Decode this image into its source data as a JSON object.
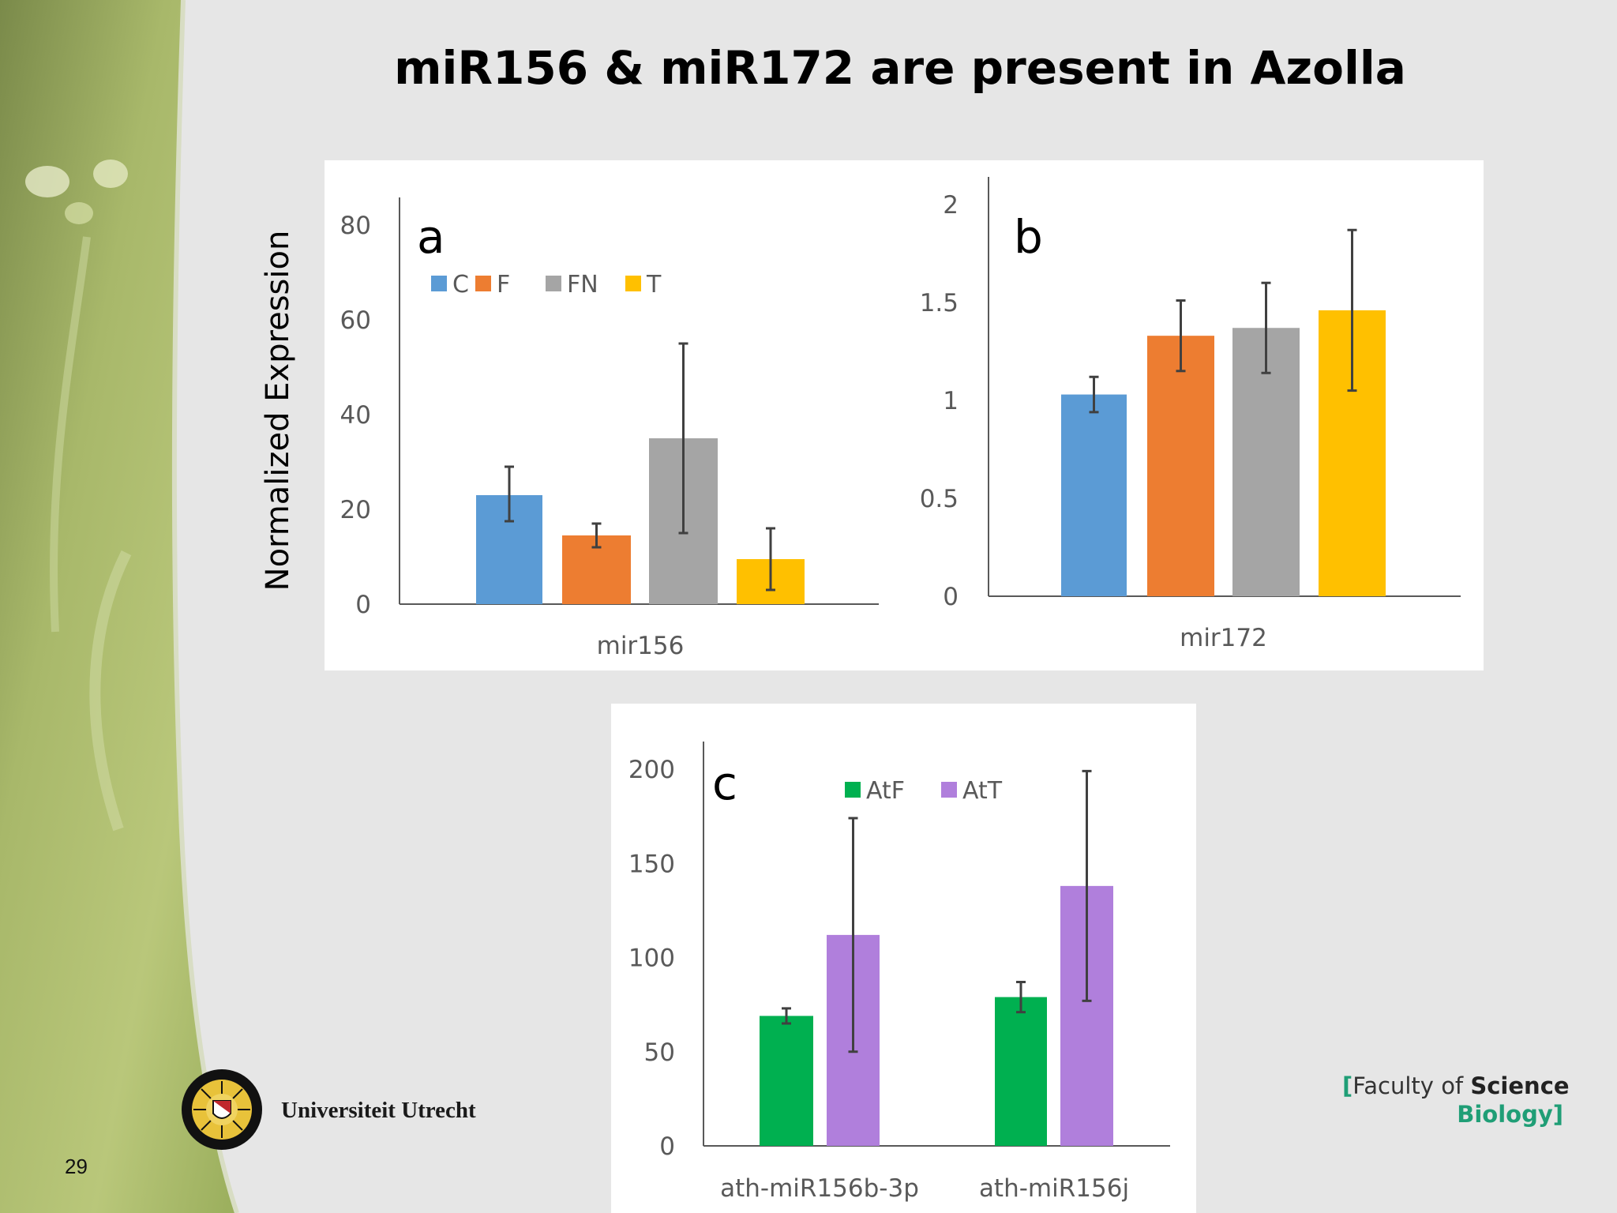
{
  "slide": {
    "title": "miR156 & miR172 are present in Azolla",
    "y_axis_label": "Normalized Expression",
    "page_number": "29",
    "university": "Universiteit Utrecht",
    "faculty": {
      "open_bracket": "[",
      "prefix": "Faculty of ",
      "emphasis": "Science",
      "dept": "Biology",
      "close_bracket": "]"
    }
  },
  "colors": {
    "C": "#5b9bd5",
    "F": "#ed7d31",
    "FN": "#a5a5a5",
    "T": "#ffc000",
    "AtF": "#00b050",
    "AtT": "#b07fdc",
    "faculty_green": "#1f9e76"
  },
  "chart_data": [
    {
      "type": "bar",
      "panel_label": "a",
      "categories": [
        "mir156"
      ],
      "series": [
        {
          "name": "C",
          "values": [
            23
          ],
          "error": [
            [
              17.5,
              29
            ]
          ]
        },
        {
          "name": "F",
          "values": [
            14.5
          ],
          "error": [
            [
              12,
              17
            ]
          ]
        },
        {
          "name": "FN",
          "values": [
            35
          ],
          "error": [
            [
              15,
              55
            ]
          ]
        },
        {
          "name": "T",
          "values": [
            9.5
          ],
          "error": [
            [
              3,
              16
            ]
          ]
        }
      ],
      "ylim": [
        0,
        80
      ],
      "yticks": [
        "0",
        "20",
        "40",
        "60",
        "80"
      ],
      "legend": "top-left",
      "grid": false
    },
    {
      "type": "bar",
      "panel_label": "b",
      "categories": [
        "mir172"
      ],
      "series": [
        {
          "name": "C",
          "values": [
            1.03
          ],
          "error": [
            [
              0.94,
              1.12
            ]
          ]
        },
        {
          "name": "F",
          "values": [
            1.33
          ],
          "error": [
            [
              1.15,
              1.51
            ]
          ]
        },
        {
          "name": "FN",
          "values": [
            1.37
          ],
          "error": [
            [
              1.14,
              1.6
            ]
          ]
        },
        {
          "name": "T",
          "values": [
            1.46
          ],
          "error": [
            [
              1.05,
              1.87
            ]
          ]
        }
      ],
      "ylim": [
        0,
        2
      ],
      "yticks": [
        "0",
        "0.5",
        "1",
        "1.5",
        "2"
      ],
      "grid": false
    },
    {
      "type": "bar",
      "panel_label": "c",
      "categories": [
        "ath-miR156b-3p",
        "ath-miR156j"
      ],
      "series": [
        {
          "name": "AtF",
          "values": [
            69,
            79
          ],
          "error": [
            [
              65,
              73
            ],
            [
              71,
              87
            ]
          ]
        },
        {
          "name": "AtT",
          "values": [
            112,
            138
          ],
          "error": [
            [
              50,
              174
            ],
            [
              77,
              199
            ]
          ]
        }
      ],
      "ylim": [
        0,
        200
      ],
      "yticks": [
        "0",
        "50",
        "100",
        "150",
        "200"
      ],
      "legend": "top-center",
      "grid": false
    }
  ]
}
